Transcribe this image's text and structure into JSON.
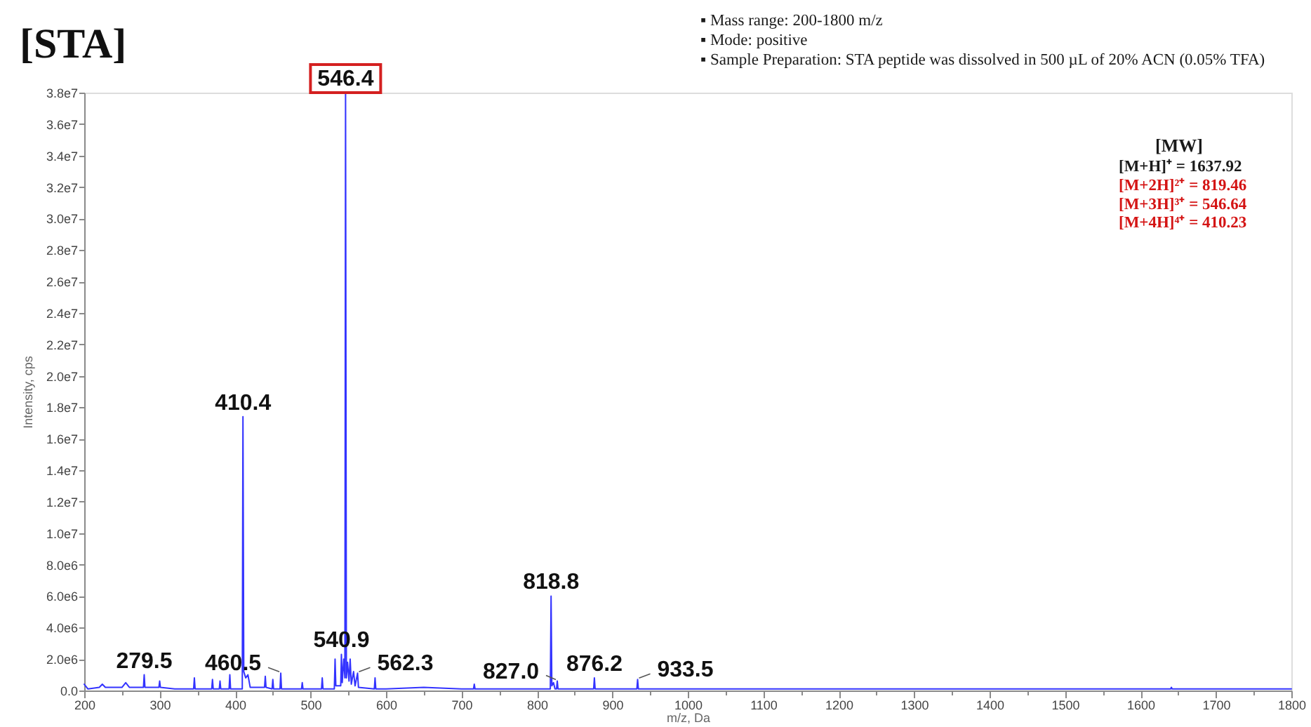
{
  "chart_data": {
    "type": "line",
    "title": "[STA]",
    "xlabel": "m/z, Da",
    "ylabel": "Intensity, cps",
    "color": "#3333ff",
    "xlim": [
      200,
      1800
    ],
    "xticks": [
      200,
      {
        "value": 250,
        "label": null
      },
      300,
      {
        "value": 350,
        "label": null
      },
      400,
      {
        "value": 450,
        "label": null
      },
      500,
      {
        "value": 550,
        "label": null
      },
      600,
      {
        "value": 650,
        "label": null
      },
      700,
      {
        "value": 750,
        "label": null
      },
      800,
      {
        "value": 850,
        "label": null
      },
      900,
      {
        "value": 950,
        "label": null
      },
      1000,
      {
        "value": 1050,
        "label": null
      },
      1100,
      {
        "value": 1150,
        "label": null
      },
      1200,
      {
        "value": 1250,
        "label": null
      },
      1300,
      {
        "value": 1350,
        "label": null
      },
      1400,
      {
        "value": 1450,
        "label": null
      },
      1500,
      {
        "value": 1550,
        "label": null
      },
      1600,
      {
        "value": 1650,
        "label": null
      },
      1700,
      {
        "value": 1750,
        "label": null
      },
      1800
    ],
    "ylim": [
      0,
      38000000
    ],
    "yticks": [
      {
        "value": 0,
        "label": "0.0"
      },
      {
        "value": 2000000,
        "label": "2.0e6"
      },
      {
        "value": 4000000,
        "label": "4.0e6"
      },
      {
        "value": 6000000,
        "label": "6.0e6"
      },
      {
        "value": 8000000,
        "label": "8.0e6"
      },
      {
        "value": 10000000,
        "label": "1.0e7"
      },
      {
        "value": 12000000,
        "label": "1.2e7"
      },
      {
        "value": 14000000,
        "label": "1.4e7"
      },
      {
        "value": 16000000,
        "label": "1.6e7"
      },
      {
        "value": 18000000,
        "label": "1.8e7"
      },
      {
        "value": 20000000,
        "label": "2.0e7"
      },
      {
        "value": 22000000,
        "label": "2.2e7"
      },
      {
        "value": 24000000,
        "label": "2.4e7"
      },
      {
        "value": 26000000,
        "label": "2.6e7"
      },
      {
        "value": 28000000,
        "label": "2.8e7"
      },
      {
        "value": 30000000,
        "label": "3.0e7"
      },
      {
        "value": 32000000,
        "label": "3.2e7"
      },
      {
        "value": 34000000,
        "label": "3.4e7"
      },
      {
        "value": 36000000,
        "label": "3.6e7"
      },
      {
        "value": 38000000,
        "label": "3.8e7"
      }
    ],
    "x": [
      200,
      205,
      220,
      224,
      228,
      250,
      255,
      260,
      278.5,
      279.5,
      280.5,
      299,
      300,
      301,
      320,
      345,
      346,
      347,
      369,
      370,
      371,
      379,
      380,
      381,
      392,
      393,
      394,
      409.5,
      410.4,
      411.5,
      414,
      417,
      420,
      439,
      440,
      441,
      449,
      450,
      451,
      459.5,
      460.5,
      461.5,
      488,
      489,
      490,
      514.5,
      515.5,
      516.5,
      531.5,
      532.5,
      533.5,
      540,
      540.9,
      542,
      544,
      545.5,
      546.4,
      547.5,
      549,
      551,
      552.5,
      554,
      557,
      559,
      562.3,
      563.5,
      584.5,
      585.5,
      586.5,
      600,
      650,
      700,
      716,
      717,
      718,
      750,
      800,
      817.8,
      818.8,
      819.8,
      822,
      824,
      826,
      827,
      828,
      840,
      875.2,
      876.2,
      877.2,
      932.5,
      933.5,
      934.5,
      1000,
      1200,
      1400,
      1640,
      1641,
      1642,
      1800
    ],
    "values": [
      400000,
      100000,
      200000,
      400000,
      200000,
      200000,
      500000,
      200000,
      200000,
      1000000,
      200000,
      200000,
      600000,
      200000,
      100000,
      100000,
      800000,
      100000,
      100000,
      700000,
      100000,
      100000,
      600000,
      100000,
      100000,
      1000000,
      100000,
      100000,
      17400000,
      1200000,
      800000,
      1000000,
      200000,
      200000,
      900000,
      200000,
      100000,
      700000,
      100000,
      100000,
      1100000,
      100000,
      100000,
      500000,
      100000,
      100000,
      800000,
      100000,
      100000,
      2000000,
      300000,
      300000,
      2300000,
      500000,
      2000000,
      800000,
      38000000,
      800000,
      1800000,
      600000,
      2000000,
      400000,
      1200000,
      300000,
      1100000,
      200000,
      100000,
      800000,
      100000,
      100000,
      200000,
      100000,
      100000,
      400000,
      100000,
      100000,
      100000,
      100000,
      6000000,
      300000,
      500000,
      100000,
      100000,
      600000,
      100000,
      100000,
      100000,
      800000,
      100000,
      100000,
      700000,
      100000,
      100000,
      100000,
      100000,
      100000,
      200000,
      100000,
      100000
    ],
    "annotations": [
      "▪ Mass range: 200-1800 m/z",
      "▪ Mode: positive",
      "▪ Sample Preparation: STA peptide was dissolved in 500 µL of 20% ACN (0.05% TFA)",
      "[MW]",
      "[M+H]⁺ = 1637.92",
      "[M+2H]²⁺ = 819.46",
      "[M+3H]³⁺ = 546.64",
      "[M+4H]⁴⁺ = 410.23",
      {
        "text": "279.5",
        "x": 279.5,
        "y": 1000000
      },
      {
        "text": "410.4",
        "x": 410.4,
        "y": 17400000
      },
      {
        "text": "460.5",
        "x": 460.5,
        "y": 1100000
      },
      {
        "text": "540.9",
        "x": 540.9,
        "y": 2300000
      },
      {
        "text": "546.4",
        "x": 546.4,
        "y": 38000000
      },
      {
        "text": "562.3",
        "x": 562.3,
        "y": 1100000
      },
      {
        "text": "818.8",
        "x": 818.8,
        "y": 6000000
      },
      {
        "text": "827.0",
        "x": 827.0,
        "y": 600000
      },
      {
        "text": "876.2",
        "x": 876.2,
        "y": 800000
      },
      {
        "text": "933.5",
        "x": 933.5,
        "y": 700000
      }
    ]
  }
}
